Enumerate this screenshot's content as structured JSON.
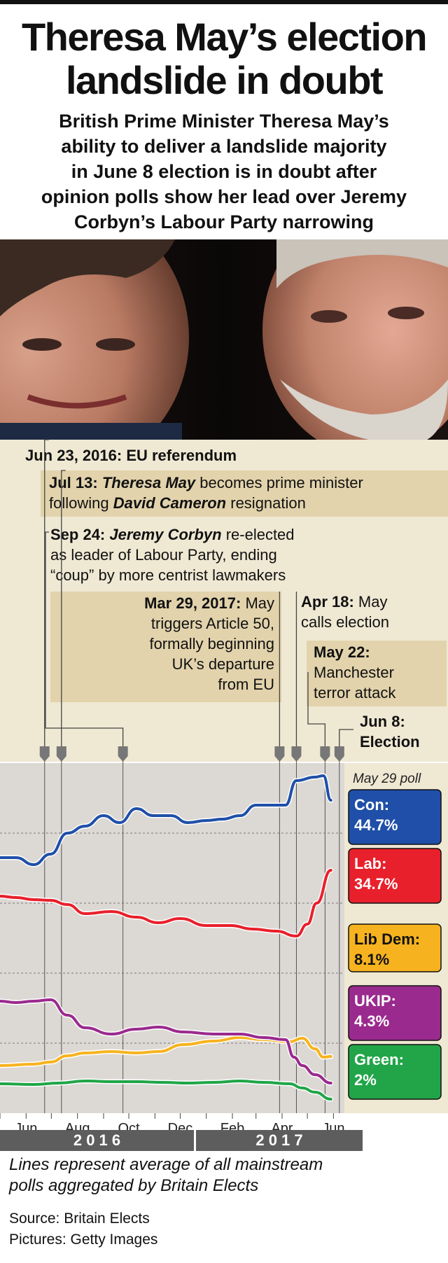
{
  "headline": "Theresa May’s election landslide in doubt",
  "headline_lines": [
    "Theresa May’s election",
    "landslide in doubt"
  ],
  "subtitle_lines": [
    "British Prime Minister Theresa May’s",
    "ability to deliver a landslide majority",
    "in June 8 election is in doubt after",
    "opinion polls show her lead over Jeremy",
    "Corbyn’s Labour Party narrowing"
  ],
  "events": {
    "eu_ref": {
      "date": "Jun 23, 2016:",
      "text": "EU referendum"
    },
    "may_pm": {
      "date": "Jul 13:",
      "name": "Theresa May",
      "text1": "becomes prime minister",
      "text2": "following",
      "name2": "David Cameron",
      "text3": "resignation"
    },
    "corbyn": {
      "date": "Sep 24:",
      "name": "Jeremy Corbyn",
      "text1": "re-elected",
      "line2": "as leader of Labour Party, ending",
      "line3": "“coup” by more centrist lawmakers"
    },
    "article50": {
      "date": "Mar 29, 2017:",
      "text1": "May",
      "line2": "triggers Article 50,",
      "line3": "formally beginning",
      "line4": "UK’s departure",
      "line5": "from EU"
    },
    "election_call": {
      "date": "Apr 18:",
      "text1": "May",
      "line2": "calls election"
    },
    "manchester": {
      "date": "May 22:",
      "line2": "Manchester",
      "line3": "terror attack"
    },
    "election": {
      "date": "Jun 8:",
      "line2": "Election"
    }
  },
  "chart_data": {
    "type": "line",
    "title": "",
    "xlabel": "",
    "ylabel": "",
    "x_ticks": [
      "Jun",
      "Aug",
      "Oct",
      "Dec",
      "Feb",
      "Apr",
      "Jun"
    ],
    "year_labels": [
      "2 0 1 6",
      "2 0 1 7"
    ],
    "grid": true,
    "legend": {
      "placement": "right",
      "title": "May 29 poll"
    },
    "x_range": [
      "2016-05-01",
      "2017-06-08"
    ],
    "y_range": [
      0,
      50
    ],
    "series": [
      {
        "name": "Con",
        "label": "44.7%",
        "color": "#1f4fa8",
        "points": [
          [
            "2016-05-01",
            36.5
          ],
          [
            "2016-05-20",
            36.5
          ],
          [
            "2016-06-10",
            35.5
          ],
          [
            "2016-06-30",
            37
          ],
          [
            "2016-07-20",
            40
          ],
          [
            "2016-08-10",
            41
          ],
          [
            "2016-09-01",
            42.5
          ],
          [
            "2016-09-20",
            41.5
          ],
          [
            "2016-10-10",
            43.5
          ],
          [
            "2016-10-30",
            42.5
          ],
          [
            "2016-11-20",
            42.5
          ],
          [
            "2016-12-10",
            41.5
          ],
          [
            "2017-01-01",
            41.8
          ],
          [
            "2017-01-20",
            42
          ],
          [
            "2017-02-10",
            42.5
          ],
          [
            "2017-03-01",
            44
          ],
          [
            "2017-03-20",
            44
          ],
          [
            "2017-04-05",
            44
          ],
          [
            "2017-04-18",
            47.5
          ],
          [
            "2017-05-10",
            48
          ],
          [
            "2017-05-20",
            48.2
          ],
          [
            "2017-05-29",
            44.7
          ]
        ]
      },
      {
        "name": "Lab",
        "label": "34.7%",
        "color": "#e8202b",
        "points": [
          [
            "2016-05-01",
            31
          ],
          [
            "2016-05-20",
            30.8
          ],
          [
            "2016-06-10",
            30.5
          ],
          [
            "2016-06-30",
            30.4
          ],
          [
            "2016-07-20",
            29.8
          ],
          [
            "2016-08-10",
            28.5
          ],
          [
            "2016-09-10",
            28.8
          ],
          [
            "2016-10-10",
            28
          ],
          [
            "2016-11-05",
            27.2
          ],
          [
            "2016-12-01",
            27.8
          ],
          [
            "2017-01-01",
            26.8
          ],
          [
            "2017-01-30",
            26.8
          ],
          [
            "2017-02-25",
            26.3
          ],
          [
            "2017-03-25",
            26
          ],
          [
            "2017-04-18",
            25.3
          ],
          [
            "2017-05-01",
            27
          ],
          [
            "2017-05-12",
            30
          ],
          [
            "2017-05-29",
            34.7
          ]
        ]
      },
      {
        "name": "Lib Dem",
        "label": "8.1%",
        "color": "#f6b31f",
        "points": [
          [
            "2016-05-01",
            6.8
          ],
          [
            "2016-06-10",
            7
          ],
          [
            "2016-06-30",
            7.3
          ],
          [
            "2016-07-20",
            8.2
          ],
          [
            "2016-08-10",
            8.6
          ],
          [
            "2016-09-10",
            8.8
          ],
          [
            "2016-10-10",
            8.6
          ],
          [
            "2016-11-05",
            8.8
          ],
          [
            "2016-12-05",
            9.8
          ],
          [
            "2017-01-10",
            10.3
          ],
          [
            "2017-02-10",
            10.8
          ],
          [
            "2017-03-10",
            10.5
          ],
          [
            "2017-04-10",
            10.2
          ],
          [
            "2017-04-25",
            10.7
          ],
          [
            "2017-05-10",
            9.2
          ],
          [
            "2017-05-20",
            8
          ],
          [
            "2017-05-29",
            8.1
          ]
        ]
      },
      {
        "name": "UKIP",
        "label": "4.3%",
        "color": "#9a2a8e",
        "points": [
          [
            "2016-05-01",
            16
          ],
          [
            "2016-05-20",
            15.8
          ],
          [
            "2016-06-10",
            16
          ],
          [
            "2016-06-30",
            16.2
          ],
          [
            "2016-07-20",
            14
          ],
          [
            "2016-08-10",
            12.2
          ],
          [
            "2016-09-10",
            11.3
          ],
          [
            "2016-10-10",
            12
          ],
          [
            "2016-11-05",
            12.3
          ],
          [
            "2016-12-05",
            11.6
          ],
          [
            "2017-01-10",
            11.3
          ],
          [
            "2017-02-10",
            11.3
          ],
          [
            "2017-03-10",
            10.8
          ],
          [
            "2017-04-05",
            10.5
          ],
          [
            "2017-04-15",
            8
          ],
          [
            "2017-04-25",
            6.8
          ],
          [
            "2017-05-10",
            5.5
          ],
          [
            "2017-05-29",
            4.3
          ]
        ]
      },
      {
        "name": "Green",
        "label": "2%",
        "color": "#21a548",
        "points": [
          [
            "2016-05-01",
            4.2
          ],
          [
            "2016-06-10",
            4.1
          ],
          [
            "2016-07-10",
            4.3
          ],
          [
            "2016-08-10",
            4.6
          ],
          [
            "2016-09-10",
            4.5
          ],
          [
            "2016-10-10",
            4.5
          ],
          [
            "2016-11-10",
            4.4
          ],
          [
            "2016-12-10",
            4.3
          ],
          [
            "2017-01-10",
            4.4
          ],
          [
            "2017-02-10",
            4.6
          ],
          [
            "2017-03-10",
            4.4
          ],
          [
            "2017-04-10",
            4.2
          ],
          [
            "2017-04-25",
            3.6
          ],
          [
            "2017-05-10",
            3
          ],
          [
            "2017-05-29",
            2
          ]
        ]
      }
    ],
    "event_markers": [
      "2016-06-23",
      "2016-07-13",
      "2016-09-24",
      "2017-03-29",
      "2017-04-18",
      "2017-05-22",
      "2017-06-08"
    ]
  },
  "footnote_lines": [
    "Lines represent average of all mainstream",
    "polls aggregated by Britain Elects"
  ],
  "source": "Source: Britain Elects",
  "pictures": "Pictures: Getty Images"
}
